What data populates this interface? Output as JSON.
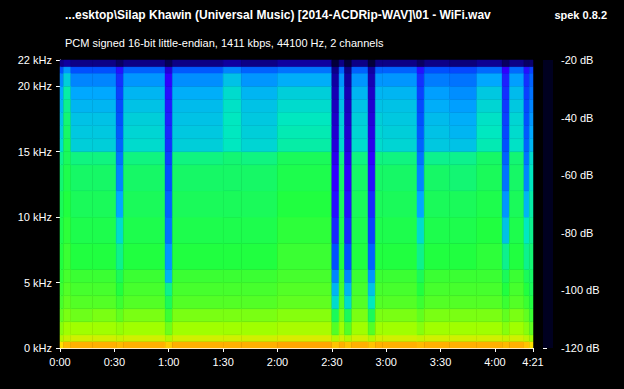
{
  "chart_data": {
    "type": "heatmap",
    "title": "...esktop\\Silap Khawin (Universal Music) [2014-ACDRip-WAV]\\01 - WiFi.wav",
    "subtitle": "PCM signed 16-bit little-endian, 1411 kbps, 44100 Hz, 2 channels",
    "annotations": [
      "spek 0.8.2"
    ],
    "xlim": [
      0,
      261
    ],
    "xticks": [
      {
        "value": 0,
        "label": "0:00"
      },
      {
        "value": 30,
        "label": "0:30"
      },
      {
        "value": 60,
        "label": "1:00"
      },
      {
        "value": 90,
        "label": "1:30"
      },
      {
        "value": 120,
        "label": "2:00"
      },
      {
        "value": 150,
        "label": "2:30"
      },
      {
        "value": 180,
        "label": "3:00"
      },
      {
        "value": 210,
        "label": "3:30"
      },
      {
        "value": 240,
        "label": "4:00"
      },
      {
        "value": 261,
        "label": "4:21"
      }
    ],
    "ylim": [
      0,
      22
    ],
    "yticks": [
      {
        "value": 0,
        "label": "0 kHz"
      },
      {
        "value": 5,
        "label": "5 kHz"
      },
      {
        "value": 10,
        "label": "10 kHz"
      },
      {
        "value": 15,
        "label": "15 kHz"
      },
      {
        "value": 20,
        "label": "20 kHz"
      },
      {
        "value": 22,
        "label": "22 kHz"
      }
    ],
    "x_bins": [
      0,
      2,
      6,
      18,
      31,
      35,
      58,
      62,
      90,
      100,
      120,
      150,
      154,
      157,
      161,
      170,
      174,
      178,
      197,
      201,
      215,
      230,
      244,
      248,
      256,
      259,
      261
    ],
    "y_bins": [
      0,
      0.5,
      1,
      2,
      3,
      4,
      5,
      6,
      8,
      10,
      12,
      14,
      15,
      16,
      17,
      18,
      19,
      20,
      21,
      21.5,
      22
    ],
    "cells": [
      [
        -40,
        -36,
        -35,
        -35,
        -36,
        -35,
        -38,
        -35,
        -35,
        -35,
        -34,
        -37,
        -35,
        -37,
        -35,
        -37,
        -35,
        -35,
        -36,
        -35,
        -35,
        -35,
        -36,
        -35,
        -37,
        -40
      ],
      [
        -48,
        -46,
        -45,
        -45,
        -46,
        -45,
        -48,
        -45,
        -45,
        -45,
        -44,
        -48,
        -45,
        -48,
        -45,
        -48,
        -45,
        -45,
        -46,
        -45,
        -45,
        -45,
        -46,
        -45,
        -47,
        -50
      ],
      [
        -52,
        -50,
        -50,
        -50,
        -51,
        -50,
        -54,
        -50,
        -50,
        -50,
        -49,
        -56,
        -50,
        -56,
        -50,
        -56,
        -50,
        -50,
        -52,
        -50,
        -50,
        -50,
        -52,
        -50,
        -52,
        -55
      ],
      [
        -55,
        -53,
        -54,
        -53,
        -55,
        -53,
        -58,
        -53,
        -53,
        -53,
        -52,
        -62,
        -53,
        -62,
        -53,
        -62,
        -53,
        -53,
        -55,
        -53,
        -53,
        -53,
        -55,
        -53,
        -55,
        -58
      ],
      [
        -57,
        -55,
        -56,
        -56,
        -58,
        -56,
        -62,
        -56,
        -56,
        -56,
        -55,
        -72,
        -56,
        -72,
        -56,
        -70,
        -56,
        -56,
        -58,
        -56,
        -56,
        -56,
        -58,
        -56,
        -58,
        -60
      ],
      [
        -58,
        -56,
        -57,
        -57,
        -60,
        -57,
        -66,
        -57,
        -57,
        -57,
        -56,
        -78,
        -57,
        -78,
        -57,
        -76,
        -57,
        -57,
        -60,
        -57,
        -57,
        -57,
        -60,
        -57,
        -60,
        -62
      ],
      [
        -59,
        -57,
        -58,
        -58,
        -62,
        -58,
        -78,
        -58,
        -58,
        -58,
        -57,
        -84,
        -58,
        -84,
        -58,
        -82,
        -58,
        -58,
        -62,
        -58,
        -58,
        -58,
        -62,
        -58,
        -62,
        -63
      ],
      [
        -60,
        -58,
        -60,
        -60,
        -66,
        -60,
        -82,
        -60,
        -60,
        -60,
        -58,
        -90,
        -60,
        -90,
        -60,
        -88,
        -60,
        -60,
        -66,
        -60,
        -60,
        -59,
        -66,
        -60,
        -66,
        -64
      ],
      [
        -61,
        -59,
        -61,
        -61,
        -72,
        -61,
        -86,
        -61,
        -61,
        -61,
        -59,
        -95,
        -61,
        -95,
        -61,
        -92,
        -61,
        -61,
        -72,
        -61,
        -61,
        -60,
        -76,
        -61,
        -70,
        -66
      ],
      [
        -62,
        -60,
        -62,
        -62,
        -80,
        -62,
        -88,
        -62,
        -62,
        -62,
        -60,
        -98,
        -62,
        -98,
        -62,
        -95,
        -62,
        -62,
        -80,
        -62,
        -62,
        -61,
        -82,
        -62,
        -78,
        -68
      ],
      [
        -64,
        -61,
        -63,
        -63,
        -84,
        -63,
        -90,
        -63,
        -63,
        -63,
        -61,
        -100,
        -63,
        -100,
        -63,
        -98,
        -63,
        -63,
        -84,
        -63,
        -64,
        -62,
        -86,
        -63,
        -84,
        -70
      ],
      [
        -66,
        -62,
        -65,
        -65,
        -86,
        -65,
        -92,
        -65,
        -64,
        -65,
        -62,
        -102,
        -65,
        -102,
        -65,
        -100,
        -65,
        -65,
        -86,
        -66,
        -66,
        -63,
        -88,
        -64,
        -86,
        -72
      ],
      [
        -72,
        -62,
        -74,
        -74,
        -88,
        -72,
        -94,
        -74,
        -70,
        -73,
        -68,
        -104,
        -72,
        -104,
        -72,
        -102,
        -72,
        -73,
        -88,
        -75,
        -76,
        -69,
        -90,
        -71,
        -88,
        -78
      ],
      [
        -74,
        -63,
        -75,
        -75,
        -89,
        -73,
        -95,
        -75,
        -70,
        -74,
        -69,
        -105,
        -73,
        -105,
        -73,
        -103,
        -73,
        -74,
        -89,
        -76,
        -78,
        -70,
        -91,
        -72,
        -89,
        -80
      ],
      [
        -76,
        -64,
        -76,
        -76,
        -90,
        -74,
        -96,
        -76,
        -70,
        -75,
        -70,
        -106,
        -74,
        -106,
        -74,
        -104,
        -74,
        -75,
        -90,
        -77,
        -79,
        -71,
        -92,
        -73,
        -90,
        -82
      ],
      [
        -78,
        -66,
        -78,
        -78,
        -91,
        -76,
        -97,
        -77,
        -71,
        -76,
        -72,
        -107,
        -76,
        -107,
        -76,
        -105,
        -76,
        -76,
        -91,
        -79,
        -81,
        -73,
        -93,
        -75,
        -91,
        -84
      ],
      [
        -80,
        -68,
        -80,
        -80,
        -92,
        -78,
        -98,
        -79,
        -72,
        -78,
        -74,
        -108,
        -78,
        -108,
        -78,
        -106,
        -78,
        -78,
        -92,
        -81,
        -83,
        -75,
        -94,
        -77,
        -92,
        -86
      ],
      [
        -84,
        -74,
        -84,
        -84,
        -94,
        -82,
        -100,
        -83,
        -76,
        -82,
        -79,
        -110,
        -82,
        -110,
        -82,
        -108,
        -82,
        -82,
        -94,
        -85,
        -86,
        -80,
        -96,
        -81,
        -94,
        -88
      ],
      [
        -90,
        -82,
        -90,
        -90,
        -98,
        -88,
        -104,
        -89,
        -84,
        -88,
        -86,
        -112,
        -88,
        -112,
        -88,
        -110,
        -88,
        -88,
        -98,
        -90,
        -91,
        -87,
        -100,
        -87,
        -98,
        -92
      ],
      [
        -112,
        -110,
        -112,
        -112,
        -115,
        -112,
        -116,
        -112,
        -110,
        -112,
        -110,
        -118,
        -112,
        -118,
        -112,
        -118,
        -112,
        -112,
        -115,
        -112,
        -113,
        -111,
        -115,
        -112,
        -115,
        -114
      ]
    ],
    "colorbar_range": [
      -120,
      -20
    ],
    "colorbar_ticks": [
      {
        "value": -120,
        "label": "-120 dB"
      },
      {
        "value": -100,
        "label": "-100 dB"
      },
      {
        "value": -80,
        "label": "-80 dB"
      },
      {
        "value": -60,
        "label": "-60 dB"
      },
      {
        "value": -40,
        "label": "-40 dB"
      },
      {
        "value": -20,
        "label": "-20 dB"
      }
    ]
  }
}
